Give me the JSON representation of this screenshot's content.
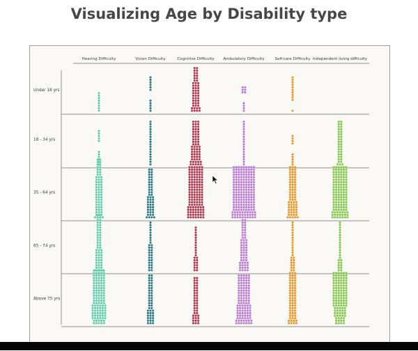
{
  "title": "Visualizing Age by Disability type",
  "colors": {
    "hearing": "#5fceae",
    "vision": "#2c7a86",
    "cognitive": "#b3354d",
    "ambulatory": "#bb7ad8",
    "selfcare": "#f09422",
    "independent": "#82c94a",
    "grid": "#8f8f8f",
    "panel": "#faf9f5"
  },
  "chart_data": {
    "type": "waffle-dot",
    "title": "Visualizing Age by Disability type",
    "columns": [
      {
        "key": "hearing",
        "label": "Hearing Difficulty"
      },
      {
        "key": "vision",
        "label": "Vision Difficulty"
      },
      {
        "key": "cognitive",
        "label": "Cognitive Difficulty"
      },
      {
        "key": "ambulatory",
        "label": "Ambulatory Difficulty"
      },
      {
        "key": "selfcare",
        "label": "Self-care Difficulty"
      },
      {
        "key": "independent",
        "label": "Independent living difficulty"
      }
    ],
    "rows": [
      {
        "label": "Under 18 yrs",
        "cells": [
          [
            [
              1,
              8
            ]
          ],
          [
            [
              1,
              5
            ],
            [
              1,
              6
            ]
          ],
          [
            [
              4,
              2
            ],
            [
              3,
              10
            ],
            [
              2,
              6
            ]
          ],
          [
            [
              1,
              4
            ],
            [
              2,
              3
            ]
          ],
          [
            [
              1,
              1
            ],
            [
              1,
              10
            ]
          ],
          []
        ]
      },
      {
        "label": "18 - 34 yrs",
        "cells": [
          [
            [
              1,
              6
            ],
            [
              1,
              5
            ]
          ],
          [
            [
              1,
              18
            ]
          ],
          [
            [
              5,
              2
            ],
            [
              4,
              6
            ],
            [
              3,
              10
            ]
          ],
          [
            [
              1,
              18
            ]
          ],
          [
            [
              1,
              5
            ],
            [
              1,
              4
            ]
          ],
          [
            [
              3,
              1
            ],
            [
              2,
              17
            ]
          ]
        ]
      },
      {
        "label": "35 - 64 yrs",
        "cells": [
          [
            [
              4,
              1
            ],
            [
              3,
              4
            ],
            [
              3,
              12
            ],
            [
              2,
              7
            ]
          ],
          [
            [
              4,
              1
            ],
            [
              3,
              8
            ],
            [
              2,
              11
            ]
          ],
          [
            [
              7,
              5
            ],
            [
              6,
              16
            ]
          ],
          [
            [
              10,
              3
            ],
            [
              9,
              18
            ]
          ],
          [
            [
              5,
              1
            ],
            [
              4,
              6
            ],
            [
              3,
              14
            ]
          ],
          [
            [
              7,
              3
            ],
            [
              6,
              18
            ]
          ]
        ]
      },
      {
        "label": "65 - 74 yrs",
        "cells": [
          [
            [
              4,
              1
            ],
            [
              3,
              8
            ],
            [
              2,
              14
            ]
          ],
          [
            [
              2,
              1
            ],
            [
              2,
              10
            ],
            [
              1,
              9
            ]
          ],
          [
            [
              2,
              6
            ],
            [
              1,
              12
            ]
          ],
          [
            [
              4,
              4
            ],
            [
              3,
              9
            ],
            [
              2,
              8
            ]
          ],
          [
            [
              2,
              6
            ],
            [
              1,
              14
            ]
          ],
          [
            [
              2,
              5
            ],
            [
              1,
              15
            ]
          ]
        ]
      },
      {
        "label": "Above 75 yrs",
        "cells": [
          [
            [
              5,
              2
            ],
            [
              6,
              6
            ],
            [
              5,
              14
            ]
          ],
          [
            [
              3,
              6
            ],
            [
              2,
              14
            ]
          ],
          [
            [
              3,
              4
            ],
            [
              2,
              15
            ]
          ],
          [
            [
              7,
              2
            ],
            [
              6,
              6
            ],
            [
              5,
              12
            ]
          ],
          [
            [
              4,
              2
            ],
            [
              3,
              5
            ],
            [
              3,
              14
            ]
          ],
          [
            [
              4,
              3
            ],
            [
              5,
              4
            ],
            [
              6,
              14
            ]
          ]
        ]
      }
    ]
  }
}
